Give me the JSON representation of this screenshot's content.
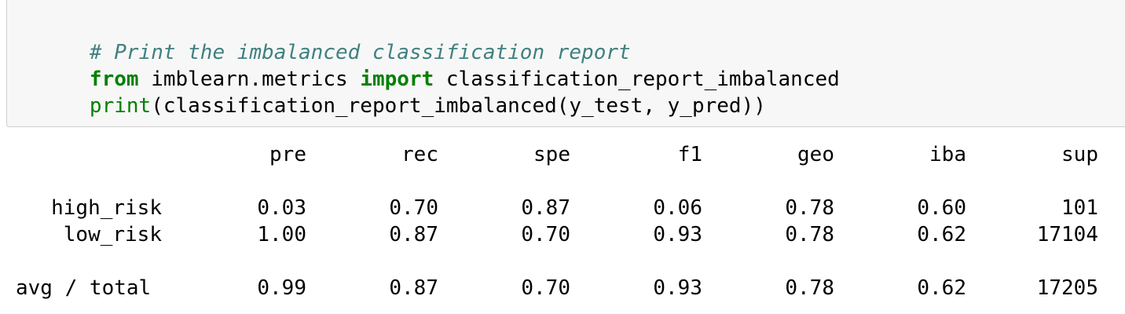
{
  "code": {
    "line1": {
      "comment": "# Print the imbalanced classification report"
    },
    "line2": {
      "kw_from": "from",
      "module": " imblearn.metrics ",
      "kw_import": "import",
      "name": " classification_report_imbalanced"
    },
    "line3": {
      "builtin_print": "print",
      "rest": "(classification_report_imbalanced(y_test, y_pred))"
    }
  },
  "report": {
    "headers": [
      "pre",
      "rec",
      "spe",
      "f1",
      "geo",
      "iba",
      "sup"
    ],
    "rows": [
      {
        "label": "high_risk",
        "values": [
          "0.03",
          "0.70",
          "0.87",
          "0.06",
          "0.78",
          "0.60",
          "101"
        ]
      },
      {
        "label": "low_risk",
        "values": [
          "1.00",
          "0.87",
          "0.70",
          "0.93",
          "0.78",
          "0.62",
          "17104"
        ]
      }
    ],
    "total": {
      "label": "avg / total",
      "values": [
        "0.99",
        "0.87",
        "0.70",
        "0.93",
        "0.78",
        "0.62",
        "17205"
      ]
    }
  }
}
